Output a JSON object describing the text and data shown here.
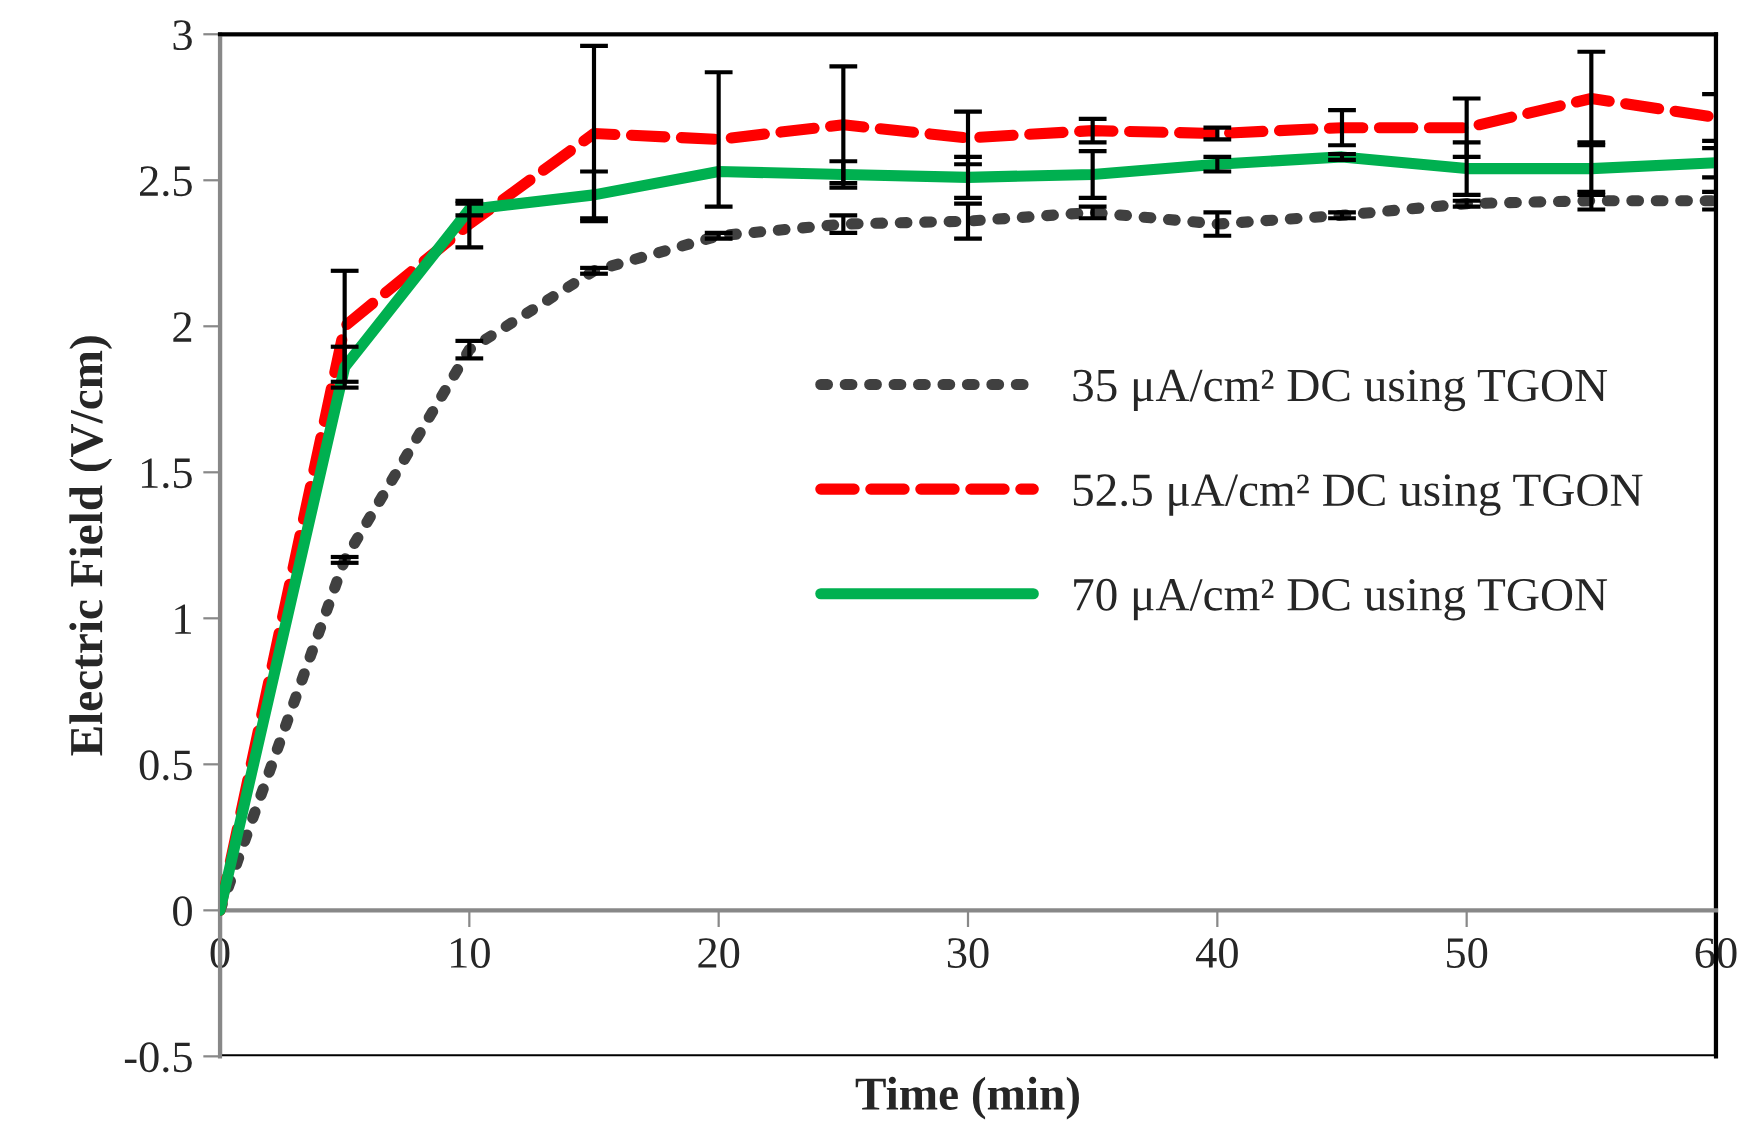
{
  "chart_data": {
    "type": "line",
    "xlabel": "Time (min)",
    "ylabel": "Electric Field (V/cm)",
    "x": [
      0,
      5,
      10,
      15,
      20,
      25,
      30,
      35,
      40,
      45,
      50,
      55,
      60
    ],
    "series": [
      {
        "name": "35 μA/cm² DC using TGON",
        "color": "#404040",
        "line_style": "dotted",
        "values": [
          0,
          1.2,
          1.92,
          2.19,
          2.31,
          2.35,
          2.36,
          2.39,
          2.35,
          2.38,
          2.42,
          2.43,
          2.43
        ],
        "errors": [
          null,
          0.01,
          0.03,
          0.01,
          0.01,
          0.03,
          0.06,
          0.02,
          0.04,
          0.01,
          0.01,
          0.03,
          0.03
        ]
      },
      {
        "name": "52.5 μA/cm² DC using TGON",
        "color": "#ff0000",
        "line_style": "dashed",
        "values": [
          0,
          2.0,
          2.35,
          2.66,
          2.64,
          2.69,
          2.645,
          2.67,
          2.66,
          2.68,
          2.68,
          2.78,
          2.715
        ],
        "errors": [
          null,
          0.19,
          0.08,
          0.3,
          0.23,
          0.2,
          0.09,
          0.04,
          0.02,
          0.06,
          0.1,
          0.16,
          0.08
        ]
      },
      {
        "name": "70 μA/cm² DC using TGON",
        "color": "#00b050",
        "line_style": "solid",
        "values": [
          0,
          1.86,
          2.4,
          2.45,
          2.53,
          2.52,
          2.51,
          2.52,
          2.555,
          2.58,
          2.54,
          2.54,
          2.56
        ],
        "errors": [
          null,
          0.07,
          0.02,
          0.08,
          null,
          0.045,
          0.07,
          0.08,
          0.025,
          0.01,
          0.09,
          0.09,
          0.05
        ]
      }
    ],
    "xlim": [
      0,
      60
    ],
    "xticks": [
      0,
      10,
      20,
      30,
      40,
      50,
      60
    ],
    "ylim": [
      -0.5,
      3
    ],
    "yticks": [
      -0.5,
      0,
      0.5,
      1,
      1.5,
      2,
      2.5,
      3
    ],
    "grid": false,
    "legend": "center right",
    "marker": "none"
  }
}
